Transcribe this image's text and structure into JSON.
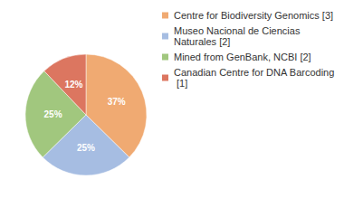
{
  "chart_data": {
    "type": "pie",
    "categories": [
      "Centre for Biodiversity Genomics [3]",
      "Museo Nacional de Ciencias Naturales [2]",
      "Mined from GenBank, NCBI [2]",
      "Canadian Centre for DNA Barcoding [1]"
    ],
    "values": [
      37,
      25,
      25,
      12
    ],
    "value_labels": [
      "37%",
      "25%",
      "25%",
      "12%"
    ],
    "colors": [
      "#f0aa72",
      "#a6bde2",
      "#a1c77e",
      "#dc7660"
    ],
    "data_labels": true,
    "legend": "top-right"
  }
}
